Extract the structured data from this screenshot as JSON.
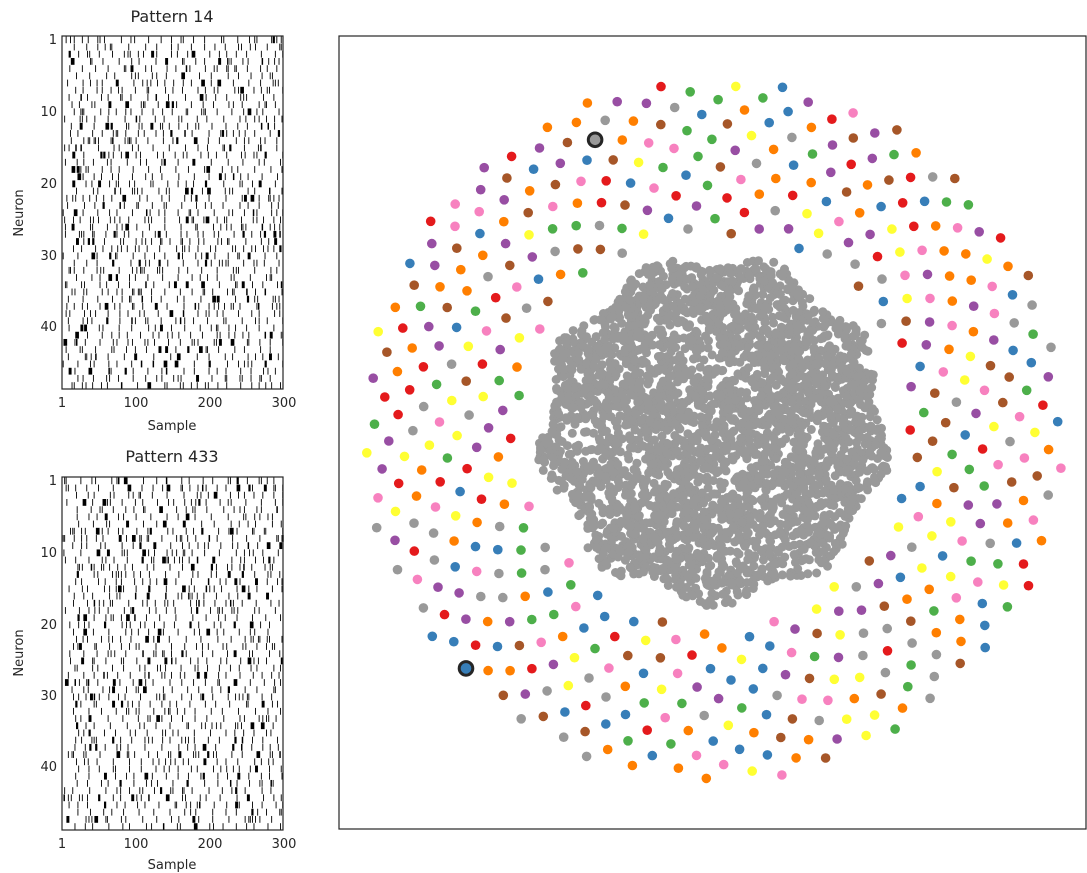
{
  "figure": {
    "panels": [
      "raster_top",
      "raster_bottom",
      "embedding"
    ]
  },
  "chart_data": [
    {
      "type": "heatmap",
      "subtype": "spike-raster",
      "title": "Pattern 14",
      "xlabel": "Sample",
      "ylabel": "Neuron",
      "xticks": [
        "1",
        "100",
        "200",
        "300"
      ],
      "yticks": [
        "1",
        "10",
        "20",
        "30",
        "40"
      ],
      "n_neurons": 49,
      "n_samples": 300,
      "spike_color": "#000000",
      "background": "#ffffff"
    },
    {
      "type": "heatmap",
      "subtype": "spike-raster",
      "title": "Pattern 433",
      "xlabel": "Sample",
      "ylabel": "Neuron",
      "xticks": [
        "1",
        "100",
        "200",
        "300"
      ],
      "yticks": [
        "1",
        "10",
        "20",
        "30",
        "40"
      ],
      "n_neurons": 49,
      "n_samples": 300,
      "spike_color": "#000000",
      "background": "#ffffff"
    },
    {
      "type": "scatter",
      "title": "",
      "xlabel": "",
      "ylabel": "",
      "axes_visible": false,
      "layout": "sunflower spiral",
      "core": {
        "color": "#999999",
        "description": "dense gray central cluster of unlabeled points"
      },
      "ring_points": 500,
      "palette": [
        "#e41a1c",
        "#377eb8",
        "#4daf4a",
        "#984ea3",
        "#ff7f00",
        "#ffff33",
        "#a65628",
        "#f781bf",
        "#999999"
      ],
      "highlighted_points": [
        {
          "color": "#999999",
          "edge_color": "#262626",
          "location": "upper-left of ring"
        },
        {
          "color": "#377eb8",
          "edge_color": "#262626",
          "location": "lower-left of ring"
        }
      ]
    }
  ]
}
